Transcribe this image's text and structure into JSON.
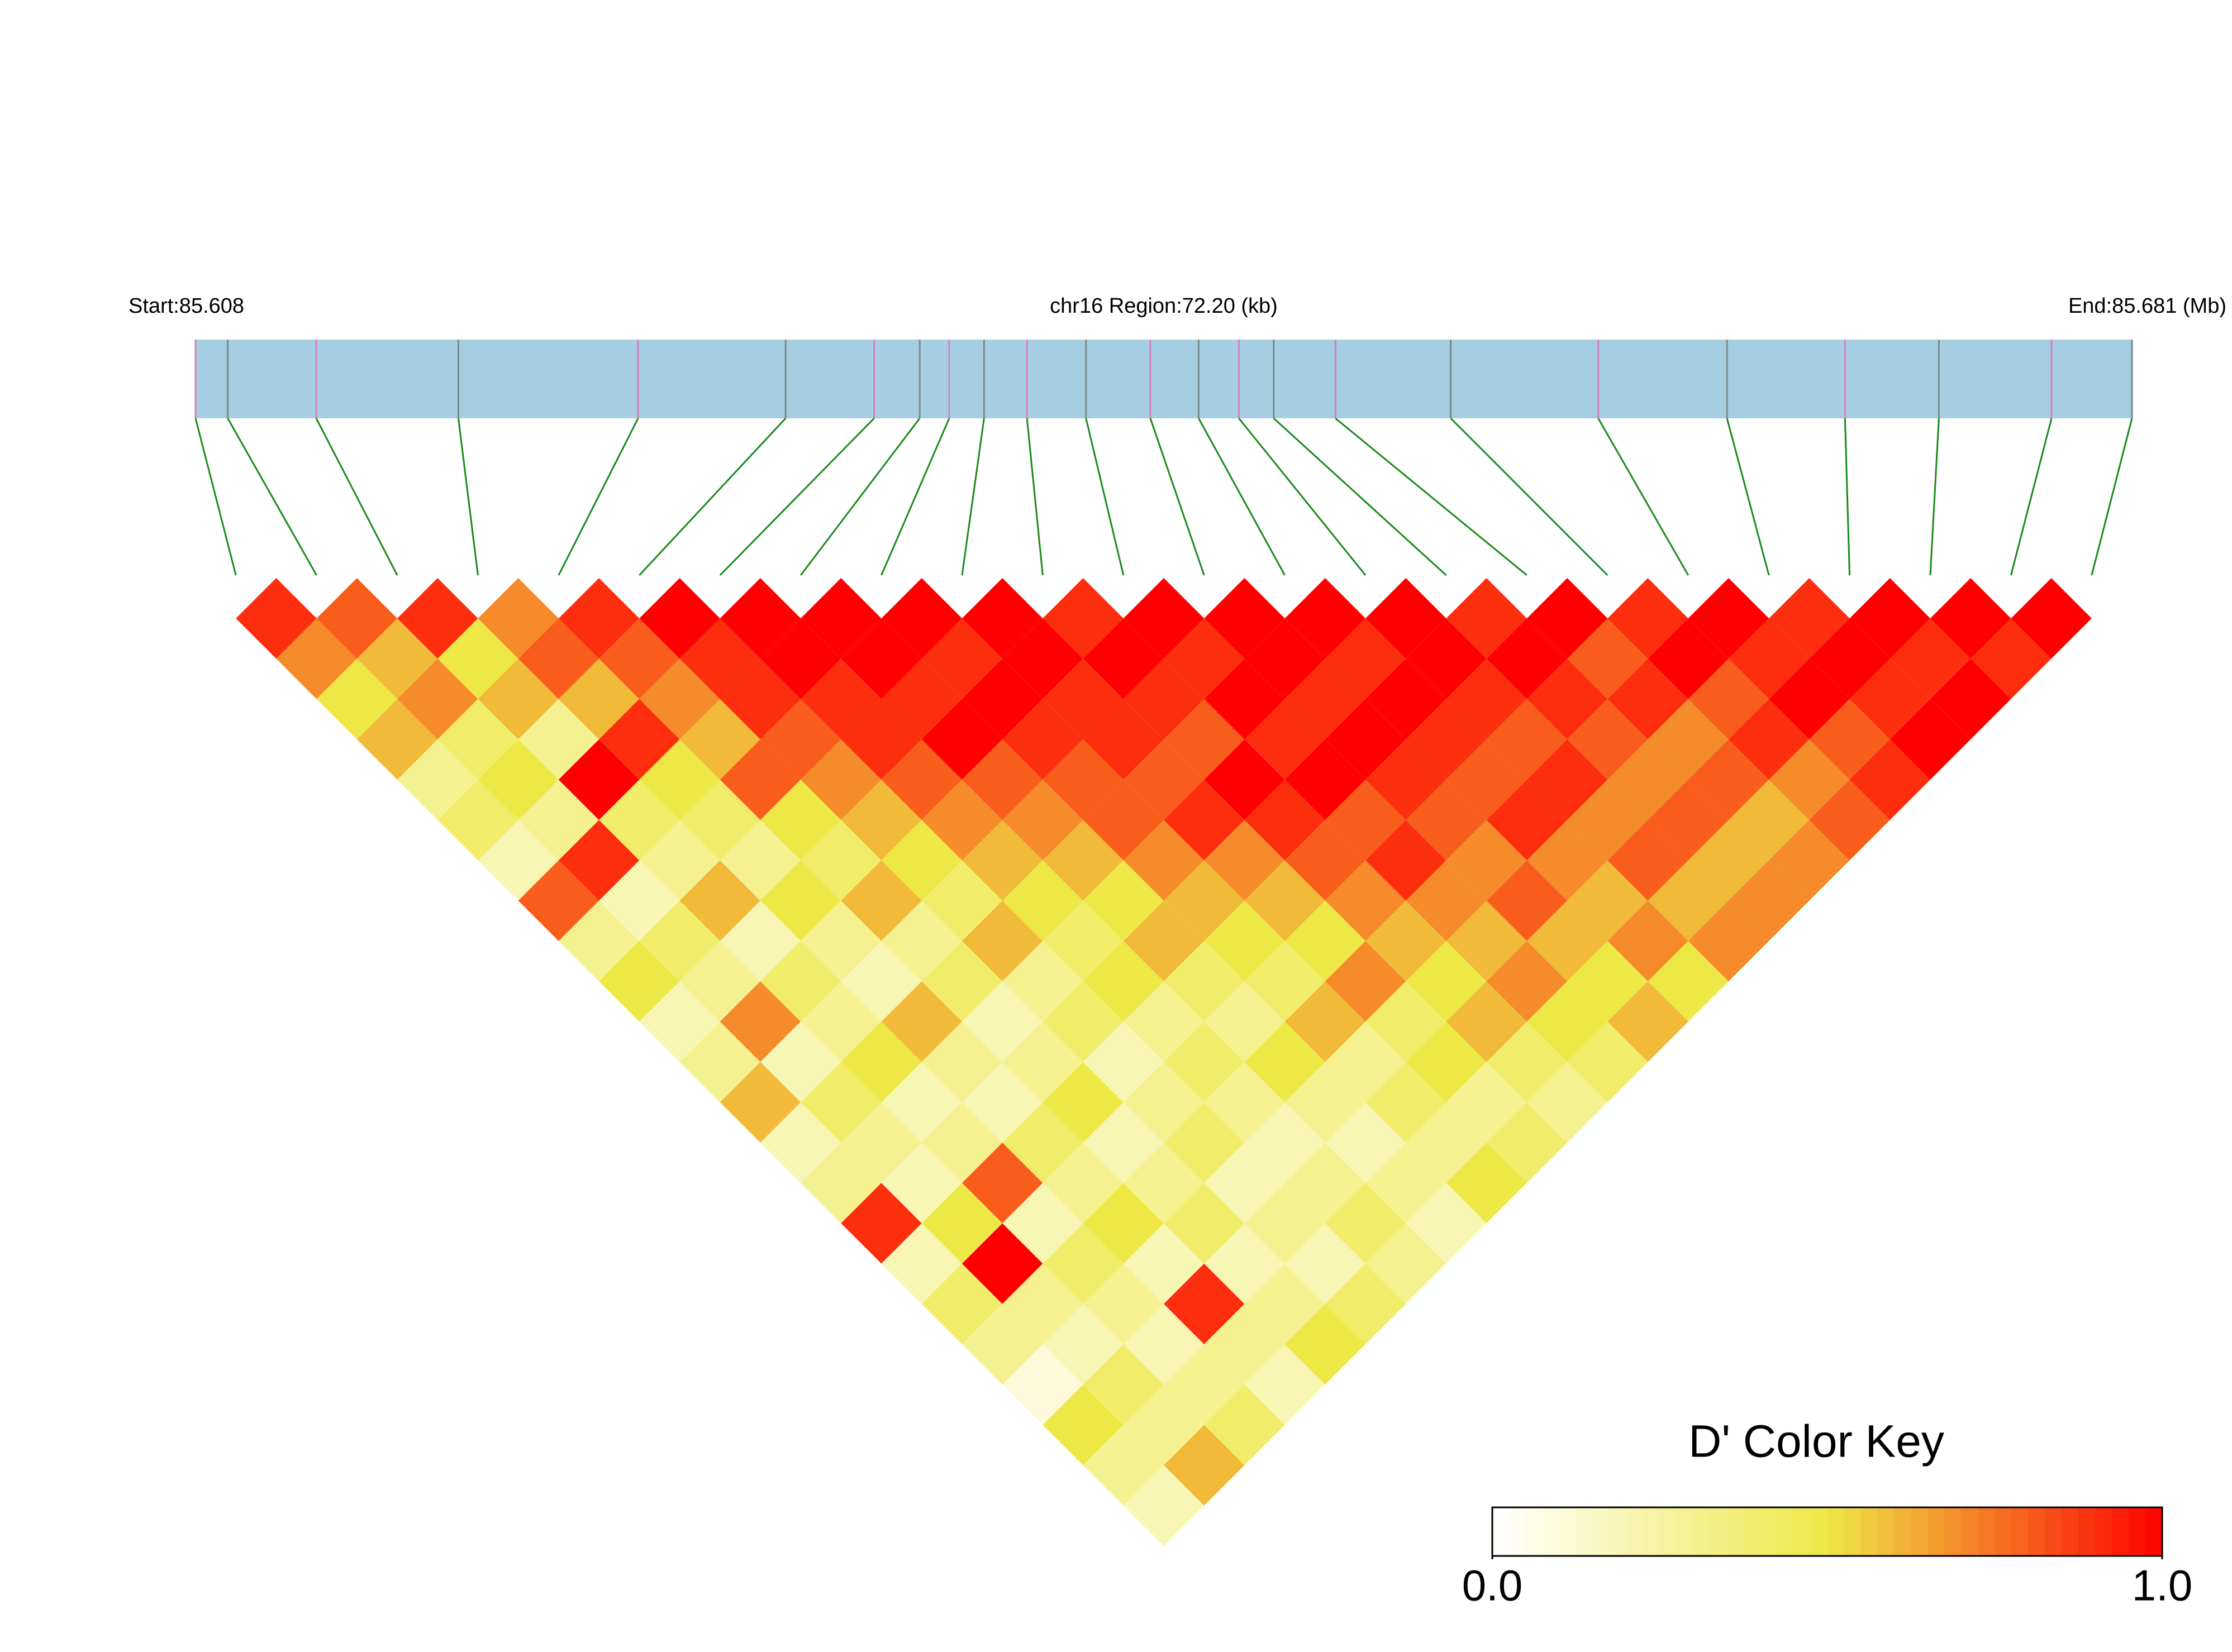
{
  "chart_data": {
    "type": "ld-heatmap",
    "start_label": "Start:85.608",
    "region_label": "chr16 Region:72.20 (kb)",
    "end_label": "End:85.681 (Mb)",
    "xlim": [
      0,
      72.2
    ],
    "snp_positions": [
      0,
      1.2,
      4.5,
      9.8,
      16.5,
      22.0,
      25.3,
      27.0,
      28.1,
      29.4,
      31.0,
      33.2,
      35.6,
      37.4,
      38.9,
      40.2,
      42.5,
      46.8,
      52.3,
      57.1,
      61.5,
      65.0,
      69.2,
      72.2
    ],
    "dprime": [
      [
        0.9,
        0.7,
        0.5,
        0.6,
        0.3,
        0.4,
        0.2,
        0.8,
        0.3,
        0.5,
        0.2,
        0.3,
        0.6,
        0.2,
        0.3,
        0.9,
        0.2,
        0.4,
        0.3,
        0.1,
        0.5,
        0.3,
        0.2
      ],
      [
        0.8,
        0.6,
        0.7,
        0.4,
        0.5,
        0.3,
        0.9,
        0.2,
        0.4,
        0.3,
        0.7,
        0.2,
        0.4,
        0.3,
        0.2,
        0.5,
        1.0,
        0.3,
        0.2,
        0.4,
        0.3,
        0.6
      ],
      [
        0.9,
        0.5,
        0.6,
        0.3,
        1.0,
        0.4,
        0.3,
        0.6,
        0.2,
        0.4,
        0.3,
        0.5,
        0.2,
        0.3,
        0.8,
        0.2,
        0.4,
        0.3,
        0.2,
        0.3,
        0.4
      ],
      [
        0.7,
        0.8,
        0.6,
        0.9,
        0.5,
        0.4,
        0.3,
        0.5,
        0.3,
        0.2,
        0.6,
        0.3,
        0.2,
        0.4,
        0.3,
        0.5,
        0.2,
        0.9,
        0.3,
        0.2
      ],
      [
        0.9,
        0.8,
        0.7,
        0.6,
        0.8,
        0.5,
        0.4,
        0.6,
        0.3,
        0.4,
        0.2,
        0.3,
        0.5,
        0.2,
        0.3,
        0.4,
        0.2,
        0.3,
        0.5
      ],
      [
        1.0,
        0.9,
        0.9,
        0.8,
        0.7,
        0.6,
        0.5,
        0.4,
        0.6,
        0.3,
        0.4,
        0.2,
        0.3,
        0.4,
        0.2,
        0.3,
        0.2,
        0.4
      ],
      [
        1.0,
        1.0,
        0.9,
        0.9,
        0.8,
        0.7,
        0.6,
        0.5,
        0.4,
        0.5,
        0.3,
        0.4,
        0.3,
        0.2,
        0.3,
        0.4,
        0.3
      ],
      [
        1.0,
        1.0,
        0.9,
        1.0,
        0.8,
        0.7,
        0.6,
        0.5,
        0.6,
        0.4,
        0.3,
        0.5,
        0.3,
        0.2,
        0.3,
        0.2
      ],
      [
        1.0,
        0.9,
        1.0,
        0.9,
        0.8,
        0.8,
        0.7,
        0.6,
        0.5,
        0.4,
        0.6,
        0.3,
        0.4,
        0.3,
        0.5
      ],
      [
        1.0,
        1.0,
        0.9,
        0.9,
        0.8,
        0.9,
        0.7,
        0.6,
        0.5,
        0.7,
        0.4,
        0.5,
        0.3,
        0.4
      ],
      [
        0.9,
        1.0,
        0.9,
        0.8,
        1.0,
        0.9,
        0.8,
        0.7,
        0.6,
        0.5,
        0.6,
        0.4,
        0.3
      ],
      [
        1.0,
        0.9,
        1.0,
        0.9,
        1.0,
        0.8,
        0.9,
        0.7,
        0.6,
        0.7,
        0.5,
        0.4
      ],
      [
        1.0,
        1.0,
        0.9,
        1.0,
        0.9,
        0.8,
        0.7,
        0.8,
        0.6,
        0.5,
        0.6
      ],
      [
        1.0,
        0.9,
        1.0,
        0.9,
        0.8,
        0.9,
        0.7,
        0.6,
        0.7,
        0.5
      ],
      [
        1.0,
        1.0,
        0.9,
        0.8,
        0.9,
        0.7,
        0.8,
        0.6,
        0.7
      ],
      [
        0.9,
        1.0,
        0.9,
        0.8,
        0.7,
        0.8,
        0.6,
        0.7
      ],
      [
        1.0,
        0.8,
        0.9,
        0.7,
        0.8,
        0.6,
        0.7
      ],
      [
        0.9,
        1.0,
        0.8,
        0.9,
        0.7,
        0.8
      ],
      [
        1.0,
        0.9,
        1.0,
        0.8,
        0.9
      ],
      [
        0.9,
        1.0,
        0.9,
        1.0
      ],
      [
        1.0,
        0.9,
        1.0
      ],
      [
        1.0,
        0.9
      ],
      [
        1.0
      ]
    ],
    "color_key": {
      "title": "D' Color Key",
      "lim": [
        0,
        1
      ],
      "ticks": [
        {
          "value": 0,
          "label": "0.0"
        },
        {
          "value": 1,
          "label": "1.0"
        }
      ],
      "colors": [
        "#ffffff",
        "#eee846",
        "#ff0000"
      ]
    },
    "bar_color": "#a6cee3",
    "line_color": "#1a8a1a"
  }
}
